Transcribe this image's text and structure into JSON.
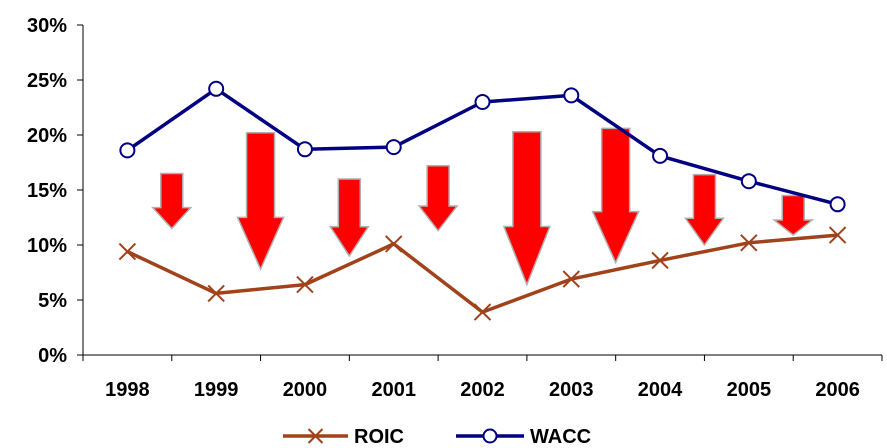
{
  "chart_data": {
    "type": "line",
    "categories": [
      "1998",
      "1999",
      "2000",
      "2001",
      "2002",
      "2003",
      "2004",
      "2005",
      "2006"
    ],
    "series": [
      {
        "name": "ROIC",
        "values": [
          9.4,
          5.6,
          6.4,
          10.1,
          3.9,
          6.9,
          8.6,
          10.2,
          10.9
        ],
        "color": "#a0421a",
        "marker": "x"
      },
      {
        "name": "WACC",
        "values": [
          18.6,
          24.2,
          18.7,
          18.9,
          23.0,
          23.6,
          18.1,
          15.8,
          13.7
        ],
        "color": "#000080",
        "marker": "circle"
      }
    ],
    "ylim": [
      0,
      30
    ],
    "yticks": [
      0,
      5,
      10,
      15,
      20,
      25,
      30
    ],
    "ytick_labels": [
      "0%",
      "5%",
      "10%",
      "15%",
      "20%",
      "25%",
      "30%"
    ],
    "annotations": {
      "type": "down-arrows",
      "color": "#ff0000",
      "from": [
        16.5,
        20.2,
        16.0,
        17.2,
        20.3,
        20.6,
        16.4,
        14.5
      ],
      "to": [
        11.5,
        7.8,
        9.0,
        11.3,
        6.4,
        8.4,
        10.0,
        10.9
      ]
    },
    "legend_position": "bottom",
    "title": "",
    "xlabel": "",
    "ylabel": ""
  }
}
